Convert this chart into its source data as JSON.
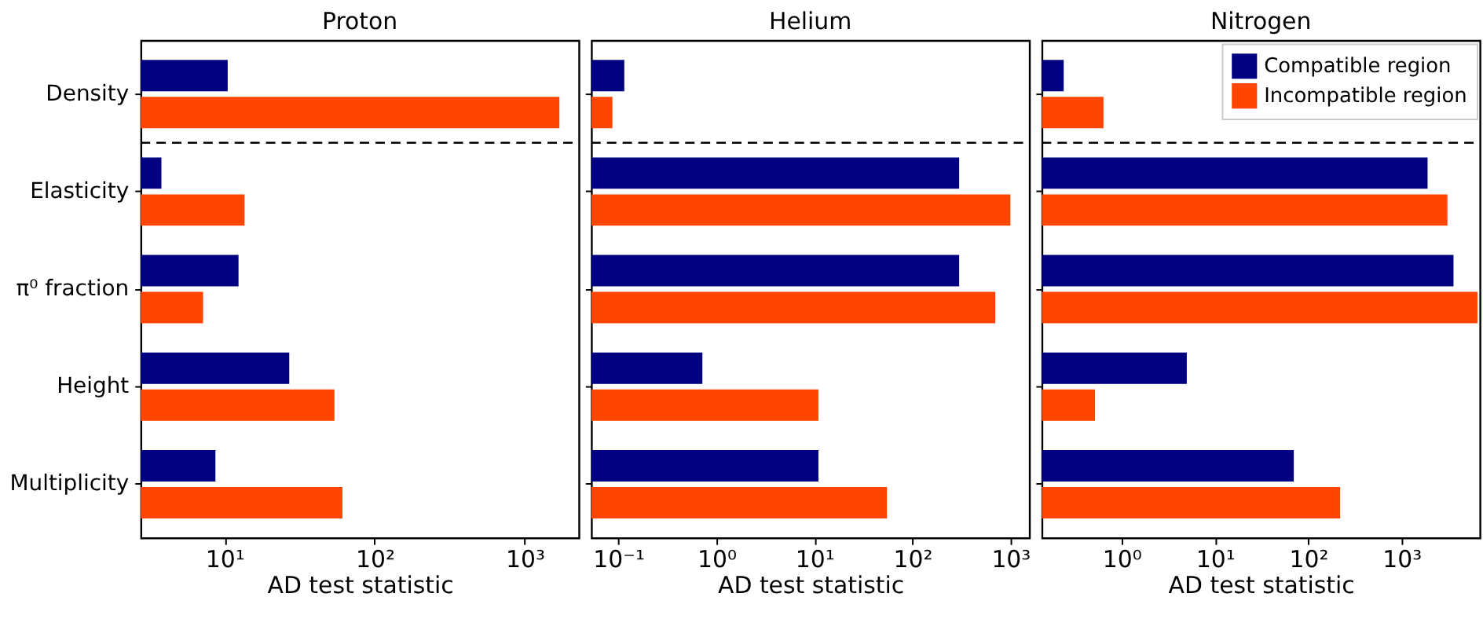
{
  "chart_data": [
    {
      "type": "bar",
      "orientation": "horizontal",
      "title": "Proton",
      "xlabel": "AD test statistic",
      "categories": [
        "Density",
        "Elasticity",
        "π⁰ fraction",
        "Height",
        "Multiplicity"
      ],
      "series": [
        {
          "color": "#000080",
          "values": [
            10.5,
            3.8,
            12.4,
            27,
            8.7
          ]
        },
        {
          "color": "#ff4500",
          "values": [
            1700,
            13.6,
            7.2,
            54,
            61
          ]
        }
      ],
      "log": "x",
      "xlim": [
        2.77,
        2290
      ],
      "xticks": [
        {
          "value": 10,
          "label": "10¹"
        },
        {
          "value": 100,
          "label": "10²"
        },
        {
          "value": 1000,
          "label": "10³"
        }
      ],
      "grid": false,
      "legend": false
    },
    {
      "type": "bar",
      "orientation": "horizontal",
      "title": "Helium",
      "xlabel": "AD test statistic",
      "categories": [
        null,
        null,
        null,
        null,
        null
      ],
      "series": [
        {
          "color": "#000080",
          "values": [
            0.115,
            300,
            300,
            0.72,
            11
          ]
        },
        {
          "color": "#ff4500",
          "values": [
            0.087,
            1000,
            700,
            11,
            55
          ]
        }
      ],
      "log": "x",
      "xlim": [
        0.053,
        1560
      ],
      "xticks": [
        {
          "value": 0.1,
          "label": "10⁻¹"
        },
        {
          "value": 1,
          "label": "10⁰"
        },
        {
          "value": 10,
          "label": "10¹"
        },
        {
          "value": 100,
          "label": "10²"
        },
        {
          "value": 1000,
          "label": "10³"
        }
      ],
      "grid": false,
      "legend": false,
      "tick_labels": "x"
    },
    {
      "type": "bar",
      "orientation": "horizontal",
      "title": "Nitrogen",
      "xlabel": "AD test statistic",
      "categories": [
        null,
        null,
        null,
        null,
        null
      ],
      "series": [
        {
          "name": "Compatible region",
          "color": "#000080",
          "values": [
            0.24,
            1900,
            3600,
            5.0,
            70
          ]
        },
        {
          "name": "Incompatible region",
          "color": "#ff4500",
          "values": [
            0.64,
            3100,
            6500,
            0.52,
            220
          ]
        }
      ],
      "log": "x",
      "xlim": [
        0.14,
        6900
      ],
      "xticks": [
        {
          "value": 1,
          "label": "10⁰"
        },
        {
          "value": 10,
          "label": "10¹"
        },
        {
          "value": 100,
          "label": "10²"
        },
        {
          "value": 1000,
          "label": "10³"
        }
      ],
      "grid": false,
      "legend": "top right",
      "tick_labels": "x"
    }
  ]
}
